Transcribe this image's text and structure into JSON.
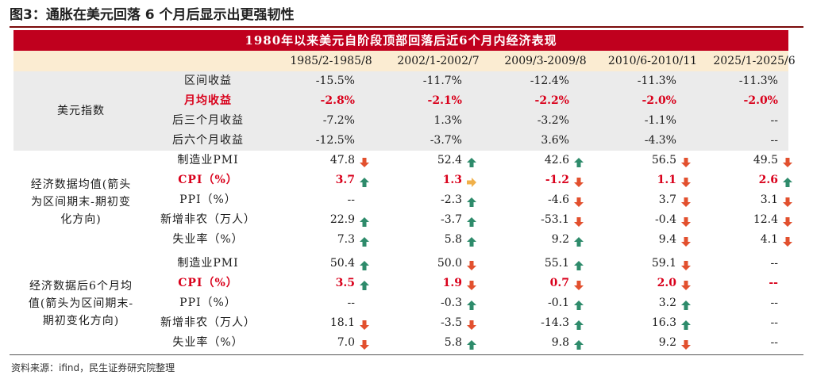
{
  "figure_title": "图3：通胀在美元回落 6 个月后显示出更强韧性",
  "banner": "1980年以来美元自阶段顶部回落后近6个月内经济表现",
  "columns": [
    "1985/2-1985/8",
    "2002/1-2002/7",
    "2009/3-2009/8",
    "2010/6-2010/11",
    "2025/1-2025/6"
  ],
  "colors": {
    "banner": "#c0001e",
    "header_bg": "#fbecd2",
    "dollar_bg": "#ebebeb",
    "up": "#2e8b6b",
    "down": "#e2502e",
    "flat": "#f0b04a",
    "highlight": "#d9001b"
  },
  "sections": [
    {
      "label_lines": [
        "美元指数"
      ],
      "rows": [
        {
          "label": "区间收益",
          "highlight": false,
          "cells": [
            {
              "v": "-15.5%"
            },
            {
              "v": "-11.7%"
            },
            {
              "v": "-12.4%"
            },
            {
              "v": "-11.3%"
            },
            {
              "v": "-11.3%"
            }
          ]
        },
        {
          "label": "月均收益",
          "highlight": true,
          "cells": [
            {
              "v": "-2.8%"
            },
            {
              "v": "-2.1%"
            },
            {
              "v": "-2.2%"
            },
            {
              "v": "-2.0%"
            },
            {
              "v": "-2.0%"
            }
          ]
        },
        {
          "label": "后三个月收益",
          "highlight": false,
          "cells": [
            {
              "v": "-7.2%"
            },
            {
              "v": "1.3%"
            },
            {
              "v": "-3.2%"
            },
            {
              "v": "-1.1%"
            },
            {
              "v": "--"
            }
          ]
        },
        {
          "label": "后六个月收益",
          "highlight": false,
          "cells": [
            {
              "v": "-12.5%"
            },
            {
              "v": "-3.7%"
            },
            {
              "v": "3.6%"
            },
            {
              "v": "-4.3%"
            },
            {
              "v": "--"
            }
          ]
        }
      ]
    },
    {
      "label_lines": [
        "经济数据均值(箭头",
        "为区间期末-期初变",
        "化方向)"
      ],
      "rows": [
        {
          "label": "制造业PMI",
          "highlight": false,
          "cells": [
            {
              "v": "47.8",
              "a": "down"
            },
            {
              "v": "52.4",
              "a": "up"
            },
            {
              "v": "42.6",
              "a": "up"
            },
            {
              "v": "56.5",
              "a": "down"
            },
            {
              "v": "49.5",
              "a": "down"
            }
          ]
        },
        {
          "label": "CPI（%）",
          "highlight": true,
          "cells": [
            {
              "v": "3.7",
              "a": "up"
            },
            {
              "v": "1.3",
              "a": "flat"
            },
            {
              "v": "-1.2",
              "a": "down"
            },
            {
              "v": "1.1",
              "a": "down"
            },
            {
              "v": "2.6",
              "a": "up"
            }
          ]
        },
        {
          "label": "PPI（%）",
          "highlight": false,
          "cells": [
            {
              "v": "--"
            },
            {
              "v": "-2.3",
              "a": "up"
            },
            {
              "v": "-4.6",
              "a": "down"
            },
            {
              "v": "3.7",
              "a": "down"
            },
            {
              "v": "3.1",
              "a": "down"
            }
          ]
        },
        {
          "label": "新增非农（万人）",
          "highlight": false,
          "cells": [
            {
              "v": "22.9",
              "a": "up"
            },
            {
              "v": "-3.7",
              "a": "up"
            },
            {
              "v": "-53.1",
              "a": "down"
            },
            {
              "v": "-0.4",
              "a": "down"
            },
            {
              "v": "12.4",
              "a": "down"
            }
          ]
        },
        {
          "label": "失业率（%）",
          "highlight": false,
          "cells": [
            {
              "v": "7.3",
              "a": "up"
            },
            {
              "v": "5.8",
              "a": "up"
            },
            {
              "v": "9.2",
              "a": "up"
            },
            {
              "v": "9.4",
              "a": "down"
            },
            {
              "v": "4.1",
              "a": "down"
            }
          ]
        }
      ]
    },
    {
      "label_lines": [
        "经济数据后6个月均",
        "值(箭头为区间期末-",
        "期初变化方向)"
      ],
      "rows": [
        {
          "label": "制造业PMI",
          "highlight": false,
          "cells": [
            {
              "v": "50.4",
              "a": "up"
            },
            {
              "v": "50.0",
              "a": "down"
            },
            {
              "v": "55.1",
              "a": "up"
            },
            {
              "v": "59.1",
              "a": "down"
            },
            {
              "v": "--"
            }
          ]
        },
        {
          "label": "CPI（%）",
          "highlight": true,
          "cells": [
            {
              "v": "3.5",
              "a": "up"
            },
            {
              "v": "1.9",
              "a": "down"
            },
            {
              "v": "0.7",
              "a": "down"
            },
            {
              "v": "2.0",
              "a": "down"
            },
            {
              "v": "--"
            }
          ]
        },
        {
          "label": "PPI（%）",
          "highlight": false,
          "cells": [
            {
              "v": "--"
            },
            {
              "v": "-0.3",
              "a": "up"
            },
            {
              "v": "-0.1",
              "a": "up"
            },
            {
              "v": "3.2",
              "a": "up"
            },
            {
              "v": "--"
            }
          ]
        },
        {
          "label": "新增非农（万人）",
          "highlight": false,
          "cells": [
            {
              "v": "18.1",
              "a": "down"
            },
            {
              "v": "-3.5",
              "a": "down"
            },
            {
              "v": "-14.3",
              "a": "up"
            },
            {
              "v": "16.3",
              "a": "up"
            },
            {
              "v": "--"
            }
          ]
        },
        {
          "label": "失业率（%）",
          "highlight": false,
          "cells": [
            {
              "v": "7.0",
              "a": "down"
            },
            {
              "v": "5.8",
              "a": "up"
            },
            {
              "v": "9.8",
              "a": "up"
            },
            {
              "v": "9.2",
              "a": "down"
            },
            {
              "v": "--"
            }
          ]
        }
      ]
    }
  ],
  "source": "资料来源：ifind，民生证券研究院整理"
}
